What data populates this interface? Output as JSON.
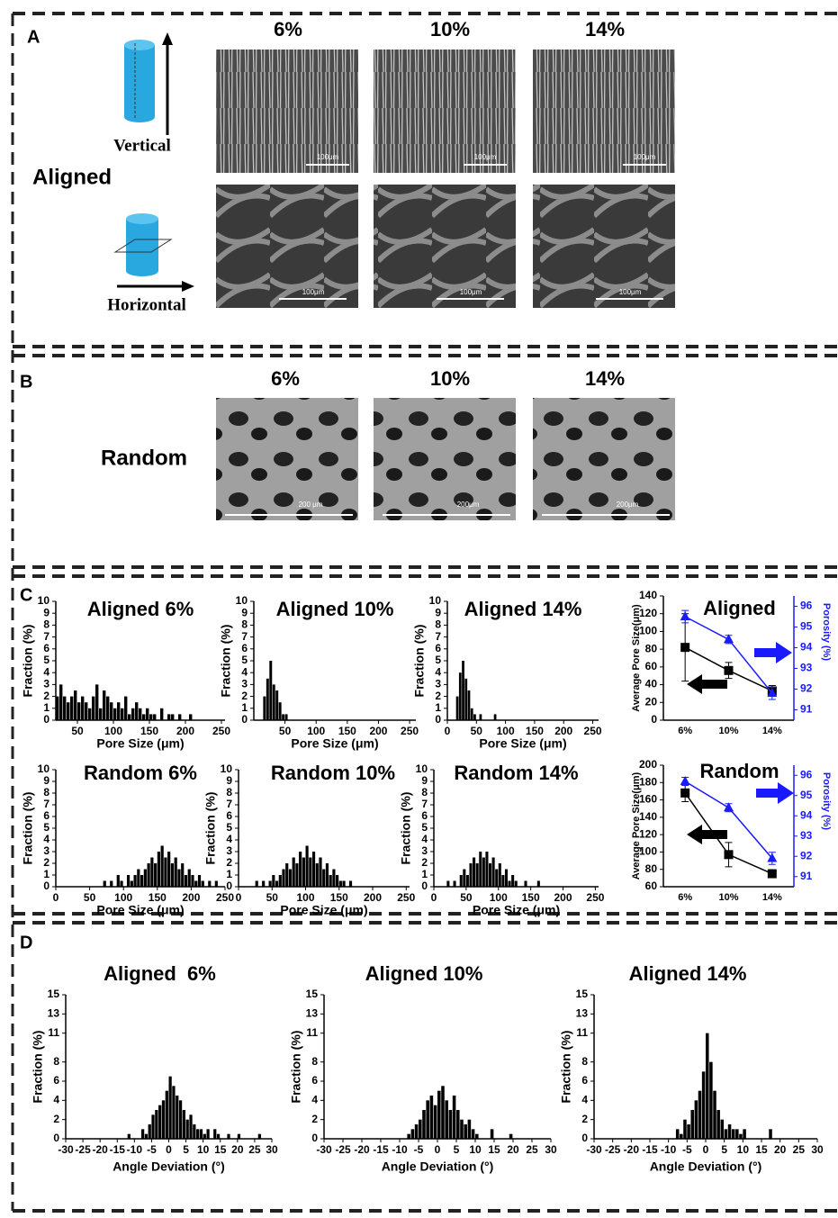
{
  "panels": [
    "A",
    "B",
    "C",
    "D"
  ],
  "sem": {
    "aligned_columns": [
      "6%",
      "10%",
      "14%"
    ],
    "aligned": "Aligned",
    "vertical": "Vertical",
    "horizontal": "Horizontal",
    "aligned_scale_bars": [
      [
        "100μm",
        "100μm",
        "100μm"
      ],
      [
        "100μm",
        "100μm",
        "100μm"
      ]
    ],
    "random_columns": [
      "6%",
      "10%",
      "14%"
    ],
    "random": "Random",
    "random_scale_bars": [
      "200 μm",
      "200μm",
      "200μm"
    ]
  },
  "chart_data": [
    {
      "type": "histogram",
      "title": "Aligned 6%",
      "xlabel": "Pore Size (μm)",
      "ylabel": "Fraction (%)",
      "color": "#000000",
      "bins": [
        10,
        15,
        20,
        25,
        30,
        35,
        40,
        45,
        50,
        55,
        60,
        65,
        70,
        75,
        80,
        85,
        90,
        95,
        100,
        105,
        110,
        115,
        120,
        125,
        130,
        135,
        140,
        145,
        150,
        155,
        160,
        165,
        170,
        175,
        180,
        185,
        190,
        195,
        200,
        205,
        210,
        215,
        220,
        225,
        230,
        235,
        240,
        245,
        250
      ],
      "counts": [
        0,
        0,
        2,
        3,
        2,
        1.5,
        2,
        2.5,
        1.5,
        2,
        1.5,
        1,
        2,
        3,
        1,
        2.5,
        2,
        1.5,
        1,
        1.5,
        1,
        2,
        0.5,
        1,
        1.5,
        1,
        0.5,
        1,
        0.5,
        0.5,
        0,
        1,
        0,
        0.5,
        0.5,
        0,
        0.5,
        0,
        0,
        0.5,
        0,
        0,
        0,
        0,
        0,
        0,
        0,
        0
      ],
      "xlim": [
        20,
        255
      ],
      "xticks": [
        50,
        100,
        150,
        200,
        250
      ],
      "ylim": [
        0,
        10
      ],
      "yticks": [
        0,
        1,
        2,
        3,
        4,
        5,
        6,
        7,
        8,
        9,
        10
      ]
    },
    {
      "type": "histogram",
      "title": "Aligned 10%",
      "xlabel": "Pore Size (μm)",
      "ylabel": "Fraction (%)",
      "color": "#000000",
      "bins": [
        10,
        15,
        20,
        25,
        30,
        35,
        40,
        45,
        50,
        55,
        60,
        65,
        70,
        75,
        80,
        85,
        90,
        95,
        100,
        105,
        110,
        115,
        120,
        125,
        130,
        135,
        140,
        145,
        150,
        155,
        160,
        165,
        170,
        175,
        180,
        185,
        190,
        195,
        200,
        205,
        210,
        215,
        220,
        225,
        230,
        235,
        240,
        245,
        250
      ],
      "counts": [
        0,
        2,
        3.5,
        5,
        3,
        2.5,
        1.5,
        0.5,
        0.5,
        0,
        0,
        0,
        0,
        0,
        0,
        0,
        0,
        0,
        0,
        0,
        0,
        0,
        0,
        0,
        0,
        0,
        0,
        0,
        0,
        0,
        0,
        0,
        0,
        0,
        0,
        0,
        0,
        0,
        0,
        0,
        0,
        0,
        0,
        0,
        0,
        0,
        0,
        0
      ],
      "xlim": [
        0,
        260
      ],
      "xticks": [
        50,
        100,
        150,
        200,
        250
      ],
      "ylim": [
        0,
        10
      ],
      "yticks": [
        0,
        1,
        2,
        3,
        4,
        5,
        6,
        7,
        8,
        9,
        10
      ]
    },
    {
      "type": "histogram",
      "title": "Aligned 14%",
      "xlabel": "Pore Size (μm)",
      "ylabel": "Fraction (%)",
      "color": "#000000",
      "bins": [
        10,
        15,
        20,
        25,
        30,
        35,
        40,
        45,
        50,
        55,
        60,
        65,
        70,
        75,
        80,
        85,
        90,
        95,
        100,
        105,
        110,
        115,
        120,
        125,
        130,
        135,
        140,
        145,
        150,
        155,
        160,
        165,
        170,
        175,
        180,
        185,
        190,
        195,
        200,
        205,
        210,
        215,
        220,
        225,
        230,
        235,
        240,
        245,
        250
      ],
      "counts": [
        0,
        2,
        4,
        5,
        3.5,
        2.5,
        1,
        0.5,
        0,
        0.5,
        0,
        0,
        0,
        0,
        0.5,
        0,
        0,
        0,
        0,
        0,
        0,
        0,
        0,
        0,
        0,
        0,
        0,
        0,
        0,
        0,
        0,
        0,
        0,
        0,
        0,
        0,
        0,
        0,
        0,
        0,
        0,
        0,
        0,
        0,
        0,
        0,
        0,
        0
      ],
      "xlim": [
        0,
        260
      ],
      "xticks": [
        0,
        50,
        100,
        150,
        200,
        250
      ],
      "ylim": [
        0,
        10
      ],
      "yticks": [
        0,
        1,
        2,
        3,
        4,
        5,
        6,
        7,
        8,
        9,
        10
      ]
    },
    {
      "type": "line",
      "title": "Aligned",
      "categories": [
        "6%",
        "10%",
        "14%"
      ],
      "ylabel": "Average Pore Size(μm)",
      "y2label": "Porosity (%)",
      "ylim": [
        0,
        140
      ],
      "yticks": [
        0,
        20,
        40,
        60,
        80,
        100,
        120,
        140
      ],
      "y2lim": [
        90.5,
        96.5
      ],
      "y2ticks": [
        91,
        92,
        93,
        94,
        95,
        96
      ],
      "series": [
        {
          "color": "#000000",
          "marker": "square",
          "values": [
            82,
            56,
            33
          ],
          "errors": [
            38,
            9,
            6
          ]
        },
        {
          "color": "#1a1aff",
          "marker": "triangle",
          "axis": "y2",
          "values": [
            95.5,
            94.4,
            91.8
          ],
          "errors": [
            0.3,
            0.2,
            0.3
          ]
        }
      ]
    },
    {
      "type": "histogram",
      "title": "Random 6%",
      "xlabel": "Pore Size (μm)",
      "ylabel": "Fraction (%)",
      "color": "#000000",
      "bins": [
        10,
        15,
        20,
        25,
        30,
        35,
        40,
        45,
        50,
        55,
        60,
        65,
        70,
        75,
        80,
        85,
        90,
        95,
        100,
        105,
        110,
        115,
        120,
        125,
        130,
        135,
        140,
        145,
        150,
        155,
        160,
        165,
        170,
        175,
        180,
        185,
        190,
        195,
        200,
        205,
        210,
        215,
        220,
        225,
        230,
        235,
        240,
        245,
        250
      ],
      "counts": [
        0,
        0,
        0,
        0,
        0,
        0,
        0,
        0,
        0,
        0,
        0,
        0,
        0.5,
        0,
        0.5,
        0,
        1,
        0.5,
        0,
        1,
        0.5,
        1,
        1.5,
        1,
        1.5,
        2,
        2.5,
        2,
        3,
        3.5,
        2.5,
        3,
        2,
        2.5,
        1.5,
        2,
        1,
        1.5,
        1,
        0.5,
        1,
        0.5,
        0,
        0.5,
        0,
        0.5,
        0,
        0
      ],
      "xlim": [
        0,
        250
      ],
      "xticks": [
        0,
        50,
        100,
        150,
        200,
        250
      ],
      "ylim": [
        0,
        10
      ],
      "yticks": [
        0,
        1,
        2,
        3,
        4,
        5,
        6,
        7,
        8,
        9,
        10
      ]
    },
    {
      "type": "histogram",
      "title": "Random 10%",
      "xlabel": "Pore Size (μm)",
      "ylabel": "Fraction (%)",
      "color": "#000000",
      "bins": [
        10,
        15,
        20,
        25,
        30,
        35,
        40,
        45,
        50,
        55,
        60,
        65,
        70,
        75,
        80,
        85,
        90,
        95,
        100,
        105,
        110,
        115,
        120,
        125,
        130,
        135,
        140,
        145,
        150,
        155,
        160,
        165,
        170,
        175,
        180,
        185,
        190,
        195,
        200,
        205,
        210,
        215,
        220,
        225,
        230,
        235,
        240,
        245,
        250
      ],
      "counts": [
        0,
        0,
        0,
        0.5,
        0,
        0.5,
        0,
        0.5,
        1,
        0.5,
        1,
        1.5,
        2,
        1.5,
        2.5,
        2,
        3,
        2.5,
        3.5,
        2.5,
        3,
        2,
        2.5,
        1.5,
        2,
        1,
        1.5,
        1,
        0.5,
        0.5,
        0,
        0.5,
        0,
        0,
        0,
        0,
        0,
        0,
        0,
        0,
        0,
        0,
        0,
        0,
        0,
        0,
        0,
        0
      ],
      "xlim": [
        0,
        255
      ],
      "xticks": [
        0,
        50,
        100,
        150,
        200,
        250
      ],
      "ylim": [
        0,
        10
      ],
      "yticks": [
        0,
        1,
        2,
        3,
        4,
        5,
        6,
        7,
        8,
        9,
        10
      ]
    },
    {
      "type": "histogram",
      "title": "Random 14%",
      "xlabel": "Pore Size (μm)",
      "ylabel": "Fraction (%)",
      "color": "#000000",
      "bins": [
        10,
        15,
        20,
        25,
        30,
        35,
        40,
        45,
        50,
        55,
        60,
        65,
        70,
        75,
        80,
        85,
        90,
        95,
        100,
        105,
        110,
        115,
        120,
        125,
        130,
        135,
        140,
        145,
        150,
        155,
        160,
        165,
        170,
        175,
        180,
        185,
        190,
        195,
        200,
        205,
        210,
        215,
        220,
        225,
        230,
        235,
        240,
        245,
        250
      ],
      "counts": [
        0,
        0,
        0.5,
        0,
        0.5,
        0,
        1,
        1.5,
        1,
        2,
        2.5,
        2,
        3,
        2.5,
        3,
        2,
        2.5,
        1.5,
        2,
        1,
        1.5,
        0.5,
        1,
        0.5,
        0,
        0,
        0.5,
        0,
        0,
        0,
        0.5,
        0,
        0,
        0,
        0,
        0,
        0,
        0,
        0,
        0,
        0,
        0,
        0,
        0,
        0,
        0,
        0,
        0
      ],
      "xlim": [
        0,
        255
      ],
      "xticks": [
        0,
        50,
        100,
        150,
        200,
        250
      ],
      "ylim": [
        0,
        10
      ],
      "yticks": [
        0,
        1,
        2,
        3,
        4,
        5,
        6,
        7,
        8,
        9,
        10
      ]
    },
    {
      "type": "line",
      "title": "Random",
      "categories": [
        "6%",
        "10%",
        "14%"
      ],
      "ylabel": "Average Pore Size(μm)",
      "y2label": "Porosity (%)",
      "ylim": [
        60,
        200
      ],
      "yticks": [
        60,
        80,
        100,
        120,
        140,
        160,
        180,
        200
      ],
      "y2lim": [
        90.5,
        96.5
      ],
      "y2ticks": [
        91,
        92,
        93,
        94,
        95,
        96
      ],
      "series": [
        {
          "color": "#000000",
          "marker": "square",
          "values": [
            168,
            97,
            75
          ],
          "errors": [
            10,
            14,
            4
          ]
        },
        {
          "color": "#1a1aff",
          "marker": "triangle",
          "axis": "y2",
          "values": [
            95.7,
            94.4,
            91.9
          ],
          "errors": [
            0.2,
            0.2,
            0.3
          ]
        }
      ]
    },
    {
      "type": "histogram",
      "title": "Aligned  6%",
      "xlabel": "Angle Deviation (°)",
      "ylabel": "Fraction (%)",
      "color": "#000000",
      "bins": [
        -15,
        -14,
        -13,
        -12,
        -11,
        -10,
        -9,
        -8,
        -7,
        -6,
        -5,
        -4,
        -3,
        -2,
        -1,
        0,
        1,
        2,
        3,
        4,
        5,
        6,
        7,
        8,
        9,
        10,
        11,
        12,
        13,
        14,
        15,
        16,
        17,
        18,
        19,
        20,
        21,
        22,
        23,
        24,
        25,
        26,
        27,
        28,
        29,
        30
      ],
      "counts": [
        0,
        0,
        0,
        0.5,
        0,
        0,
        0,
        1,
        0.5,
        1.5,
        2.5,
        3,
        3.5,
        4,
        5,
        6.5,
        5.5,
        4.5,
        4,
        3,
        2,
        2.5,
        1.5,
        1,
        1,
        0.5,
        1,
        0,
        1,
        0.5,
        0,
        0,
        0.5,
        0,
        0,
        0.5,
        0,
        0,
        0,
        0,
        0,
        0.5,
        0,
        0,
        0
      ],
      "xlim": [
        -30,
        30
      ],
      "xticks": [
        -30,
        -25,
        -20,
        -15,
        -10,
        -5,
        0,
        5,
        10,
        15,
        20,
        25,
        30
      ],
      "ylim": [
        0,
        15
      ],
      "yticks": [
        0,
        2,
        4,
        6,
        8,
        11,
        13,
        15
      ]
    },
    {
      "type": "histogram",
      "title": "Aligned 10%",
      "xlabel": "Angle Deviation (°)",
      "ylabel": "Fraction (%)",
      "color": "#000000",
      "bins": [
        -15,
        -14,
        -13,
        -12,
        -11,
        -10,
        -9,
        -8,
        -7,
        -6,
        -5,
        -4,
        -3,
        -2,
        -1,
        0,
        1,
        2,
        3,
        4,
        5,
        6,
        7,
        8,
        9,
        10,
        11,
        12,
        13,
        14,
        15,
        16,
        17,
        18,
        19,
        20,
        21,
        22,
        23,
        24,
        25,
        26,
        27,
        28,
        29,
        30
      ],
      "counts": [
        0,
        0,
        0,
        0,
        0,
        0,
        0,
        0.5,
        1,
        1.5,
        2,
        3,
        4,
        4.5,
        3.5,
        5,
        5.5,
        4,
        3,
        4.5,
        3,
        2,
        1.5,
        2,
        1,
        0.5,
        0,
        0,
        0,
        1,
        0,
        0,
        0,
        0,
        0.5,
        0,
        0,
        0,
        0,
        0,
        0,
        0,
        0,
        0,
        0
      ],
      "xlim": [
        -30,
        30
      ],
      "xticks": [
        -30,
        -25,
        -20,
        -15,
        -10,
        -5,
        0,
        5,
        10,
        15,
        20,
        25,
        30
      ],
      "ylim": [
        0,
        15
      ],
      "yticks": [
        0,
        2,
        4,
        6,
        8,
        11,
        13,
        15
      ]
    },
    {
      "type": "histogram",
      "title": "Aligned 14%",
      "xlabel": "Angle Deviation (°)",
      "ylabel": "Fraction (%)",
      "color": "#000000",
      "bins": [
        -15,
        -14,
        -13,
        -12,
        -11,
        -10,
        -9,
        -8,
        -7,
        -6,
        -5,
        -4,
        -3,
        -2,
        -1,
        0,
        1,
        2,
        3,
        4,
        5,
        6,
        7,
        8,
        9,
        10,
        11,
        12,
        13,
        14,
        15,
        16,
        17,
        18,
        19,
        20,
        21,
        22,
        23,
        24,
        25,
        26,
        27,
        28,
        29,
        30
      ],
      "counts": [
        0,
        0,
        0,
        0,
        0,
        0,
        0,
        1,
        0.5,
        2,
        1.5,
        3,
        4,
        5,
        7,
        11,
        8,
        5,
        3,
        2,
        1,
        1.5,
        1,
        1,
        0.5,
        1,
        0,
        0,
        0,
        0,
        0,
        0,
        1,
        0,
        0,
        0,
        0,
        0,
        0,
        0,
        0,
        0,
        0,
        0,
        0
      ],
      "xlim": [
        -30,
        30
      ],
      "xticks": [
        -30,
        -25,
        -20,
        -15,
        -10,
        -5,
        0,
        5,
        10,
        15,
        20,
        25,
        30
      ],
      "ylim": [
        0,
        15
      ],
      "yticks": [
        0,
        2,
        4,
        6,
        8,
        11,
        13,
        15
      ]
    }
  ]
}
